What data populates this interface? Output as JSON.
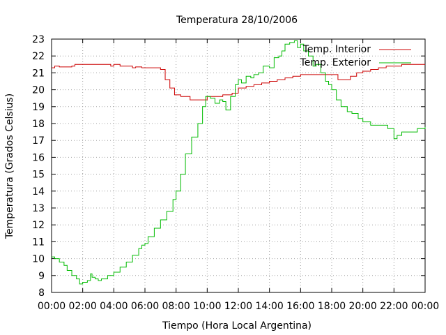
{
  "chart_data": {
    "type": "line",
    "title": "Temperatura 28/10/2006",
    "xlabel": "Tiempo (Hora Local Argentina)",
    "ylabel": "Temperatura (Grados Celsius)",
    "x_unit": "hours",
    "xlim": [
      0,
      24
    ],
    "ylim": [
      8,
      23
    ],
    "grid": true,
    "legend_position": "top-right",
    "x_ticks": [
      {
        "v": 0,
        "label": "00:00"
      },
      {
        "v": 2,
        "label": "02:00"
      },
      {
        "v": 4,
        "label": "04:00"
      },
      {
        "v": 6,
        "label": "06:00"
      },
      {
        "v": 8,
        "label": "08:00"
      },
      {
        "v": 10,
        "label": "10:00"
      },
      {
        "v": 12,
        "label": "12:00"
      },
      {
        "v": 14,
        "label": "14:00"
      },
      {
        "v": 16,
        "label": "16:00"
      },
      {
        "v": 18,
        "label": "18:00"
      },
      {
        "v": 20,
        "label": "20:00"
      },
      {
        "v": 22,
        "label": "22:00"
      },
      {
        "v": 24,
        "label": "00:00"
      }
    ],
    "y_ticks": [
      8,
      9,
      10,
      11,
      12,
      13,
      14,
      15,
      16,
      17,
      18,
      19,
      20,
      21,
      22,
      23
    ],
    "series": [
      {
        "name": "Temp. Interior",
        "color": "#cc0000",
        "step": true,
        "x": [
          0,
          0.2,
          0.5,
          1.3,
          1.5,
          2.5,
          3.6,
          3.8,
          4.0,
          4.4,
          4.6,
          5.2,
          5.4,
          5.8,
          7.0,
          7.3,
          7.6,
          7.9,
          8.3,
          8.9,
          9.3,
          10.0,
          11.0,
          11.6,
          12.0,
          12.5,
          13.0,
          13.5,
          14.0,
          14.5,
          15.0,
          15.5,
          16.0,
          17.5,
          18.0,
          18.4,
          18.8,
          19.2,
          19.6,
          20.0,
          20.5,
          21.0,
          21.5,
          22.0,
          22.5,
          24.0
        ],
        "y": [
          21.3,
          21.4,
          21.35,
          21.4,
          21.5,
          21.5,
          21.5,
          21.4,
          21.5,
          21.4,
          21.4,
          21.3,
          21.35,
          21.3,
          21.2,
          20.6,
          20.1,
          19.7,
          19.6,
          19.4,
          19.4,
          19.6,
          19.7,
          19.8,
          20.1,
          20.2,
          20.3,
          20.4,
          20.5,
          20.6,
          20.7,
          20.8,
          20.9,
          20.9,
          20.9,
          20.6,
          20.6,
          20.8,
          21.0,
          21.1,
          21.2,
          21.3,
          21.4,
          21.4,
          21.5,
          21.5
        ],
        "color_hex": "#cc0000"
      },
      {
        "name": "Temp. Exterior",
        "color": "#00bb00",
        "step": true,
        "x": [
          0,
          0.2,
          0.5,
          0.8,
          1.0,
          1.3,
          1.6,
          1.8,
          2.0,
          2.3,
          2.5,
          2.6,
          2.8,
          3.0,
          3.2,
          3.6,
          4.0,
          4.4,
          4.8,
          5.2,
          5.6,
          5.8,
          6.0,
          6.2,
          6.6,
          7.0,
          7.4,
          7.8,
          8.0,
          8.3,
          8.6,
          9.0,
          9.4,
          9.7,
          9.9,
          10.2,
          10.5,
          10.8,
          11.0,
          11.2,
          11.5,
          11.8,
          12.0,
          12.2,
          12.5,
          12.8,
          13.0,
          13.3,
          13.6,
          14.0,
          14.3,
          14.6,
          14.8,
          15.0,
          15.3,
          15.6,
          15.8,
          16.0,
          16.2,
          16.5,
          16.8,
          17.0,
          17.3,
          17.6,
          17.8,
          18.0,
          18.3,
          18.6,
          19.0,
          19.3,
          19.7,
          20.0,
          20.5,
          21.0,
          21.6,
          22.0,
          22.2,
          22.5,
          23.0,
          23.5,
          24.0
        ],
        "y": [
          10.1,
          10.0,
          9.8,
          9.6,
          9.3,
          9.0,
          8.8,
          8.5,
          8.6,
          8.7,
          9.1,
          8.9,
          8.8,
          8.7,
          8.8,
          9.0,
          9.2,
          9.5,
          9.8,
          10.2,
          10.6,
          10.8,
          10.9,
          11.3,
          11.8,
          12.3,
          12.8,
          13.5,
          14.0,
          15.0,
          16.2,
          17.2,
          18.0,
          19.0,
          19.6,
          19.5,
          19.2,
          19.4,
          19.3,
          18.8,
          19.6,
          20.3,
          20.6,
          20.4,
          20.8,
          20.7,
          20.9,
          21.0,
          21.4,
          21.3,
          21.9,
          22.0,
          22.3,
          22.7,
          22.8,
          22.9,
          22.5,
          22.7,
          22.3,
          22.0,
          21.4,
          21.5,
          21.0,
          20.5,
          20.3,
          20.0,
          19.4,
          19.0,
          18.7,
          18.6,
          18.3,
          18.1,
          17.9,
          17.9,
          17.7,
          17.1,
          17.3,
          17.5,
          17.5,
          17.7,
          17.8
        ],
        "color_hex": "#00bb00"
      }
    ]
  }
}
